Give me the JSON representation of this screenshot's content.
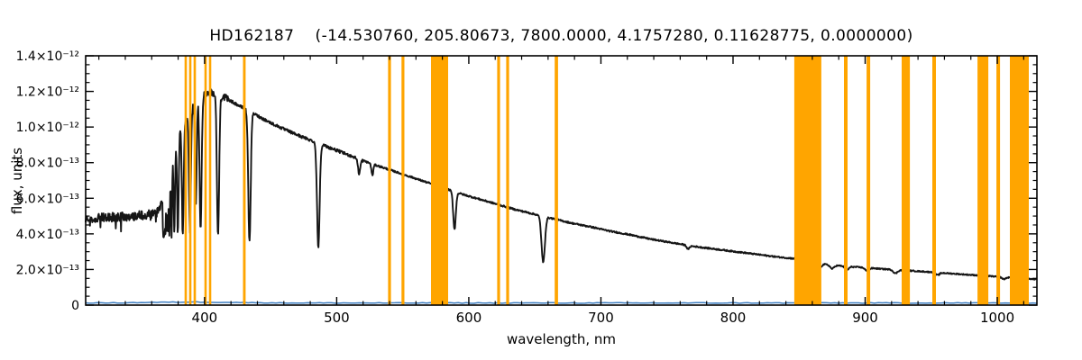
{
  "chart_data": {
    "type": "line",
    "title": "HD162187    (-14.530760, 205.80673, 7800.0000, 4.1757280, 0.11628775, 0.0000000)",
    "xlabel": "wavelength, nm",
    "ylabel": "flux, units",
    "xlim": [
      310,
      1030
    ],
    "ylim": [
      0,
      1.4e-12
    ],
    "flux_unit_scale": 1e-13,
    "grid": false,
    "legend": "none",
    "x_ticks": [
      {
        "value": 400,
        "label": "400"
      },
      {
        "value": 500,
        "label": "500"
      },
      {
        "value": 600,
        "label": "600"
      },
      {
        "value": 700,
        "label": "700"
      },
      {
        "value": 800,
        "label": "800"
      },
      {
        "value": 900,
        "label": "900"
      },
      {
        "value": 1000,
        "label": "1000"
      }
    ],
    "x_minor_step": 20,
    "y_ticks": [
      {
        "value": 14,
        "label": "1.4×10⁻¹²"
      },
      {
        "value": 12,
        "label": "1.2×10⁻¹²"
      },
      {
        "value": 10,
        "label": "1.0×10⁻¹²"
      },
      {
        "value": 8,
        "label": "8.0×10⁻¹³"
      },
      {
        "value": 6,
        "label": "6.0×10⁻¹³"
      },
      {
        "value": 4,
        "label": "4.0×10⁻¹³"
      },
      {
        "value": 2,
        "label": "2.0×10⁻¹³"
      },
      {
        "value": 0,
        "label": "0"
      }
    ],
    "y_minor_step": 0.5,
    "series": [
      {
        "name": "stellar spectrum",
        "color": "#151515",
        "continuum": {
          "x": [
            310,
            335,
            355,
            363,
            366,
            369,
            372,
            375,
            378,
            381,
            384,
            387,
            390,
            393,
            396,
            400,
            404,
            408,
            413,
            419,
            426,
            434,
            442,
            451,
            461,
            472,
            484,
            496,
            510,
            524,
            538,
            552,
            566,
            580,
            594,
            608,
            622,
            636,
            650,
            664,
            678,
            692,
            707,
            722,
            738,
            754,
            770,
            786,
            802,
            818,
            834,
            848,
            860,
            868,
            874,
            885,
            900,
            915,
            930,
            945,
            960,
            975,
            990,
            1005,
            1018,
            1030
          ],
          "y": [
            4.85,
            4.95,
            5.05,
            5.15,
            5.4,
            6.2,
            7.2,
            8.1,
            8.9,
            9.6,
            10.1,
            10.6,
            11.0,
            11.3,
            11.6,
            11.85,
            11.95,
            11.9,
            11.75,
            11.5,
            11.2,
            10.9,
            10.55,
            10.2,
            9.85,
            9.5,
            9.15,
            8.8,
            8.4,
            8.0,
            7.65,
            7.3,
            6.95,
            6.6,
            6.25,
            5.95,
            5.65,
            5.35,
            5.1,
            4.85,
            4.6,
            4.4,
            4.15,
            3.95,
            3.7,
            3.5,
            3.3,
            3.15,
            3.0,
            2.85,
            2.7,
            2.6,
            2.45,
            2.3,
            2.25,
            2.18,
            2.1,
            2.02,
            1.95,
            1.88,
            1.8,
            1.72,
            1.65,
            1.57,
            1.5,
            1.45
          ]
        },
        "absorption_lines": [
          [
            656.3,
            1.8,
            0.52
          ],
          [
            589.2,
            1.4,
            0.33
          ],
          [
            517.0,
            1.2,
            0.1
          ],
          [
            527.0,
            1.0,
            0.08
          ],
          [
            766.0,
            1.5,
            0.06
          ],
          [
            486.1,
            1.4,
            0.64
          ],
          [
            434.0,
            1.3,
            0.67
          ],
          [
            410.2,
            1.2,
            0.67
          ],
          [
            397.0,
            1.1,
            0.64
          ],
          [
            393.4,
            0.9,
            0.5
          ],
          [
            388.9,
            1.0,
            0.62
          ],
          [
            383.5,
            0.9,
            0.6
          ],
          [
            379.8,
            0.8,
            0.57
          ],
          [
            377.1,
            0.7,
            0.54
          ],
          [
            375.0,
            0.62,
            0.51
          ],
          [
            373.4,
            0.55,
            0.48
          ],
          [
            372.2,
            0.5,
            0.45
          ],
          [
            371.2,
            0.45,
            0.42
          ],
          [
            370.3,
            0.4,
            0.39
          ],
          [
            369.6,
            0.38,
            0.36
          ],
          [
            369.0,
            0.35,
            0.33
          ],
          [
            368.5,
            0.33,
            0.3
          ],
          [
            850.0,
            1.5,
            0.08
          ],
          [
            854.2,
            1.5,
            0.08
          ],
          [
            866.2,
            1.5,
            0.08
          ],
          [
            875.0,
            2.0,
            0.09
          ],
          [
            886.2,
            2.0,
            0.09
          ],
          [
            901.5,
            2.0,
            0.09
          ],
          [
            922.9,
            2.2,
            0.1
          ],
          [
            954.8,
            2.0,
            0.08
          ],
          [
            1004.9,
            2.0,
            0.07
          ]
        ]
      },
      {
        "name": "flux error",
        "color": "#3f7fc1",
        "base_level": 0.12,
        "bump_center": 390,
        "bump_height": 0.05
      }
    ],
    "masked_bands": {
      "color": "#ffa500",
      "bands": [
        [
          385.8,
          1.8
        ],
        [
          389.2,
          1.8
        ],
        [
          392.6,
          1.8
        ],
        [
          400.8,
          1.8
        ],
        [
          404.2,
          1.8
        ],
        [
          430.1,
          2.0
        ],
        [
          540.0,
          2.2
        ],
        [
          550.2,
          2.2
        ],
        [
          577.9,
          13.0
        ],
        [
          622.6,
          2.2
        ],
        [
          629.4,
          2.2
        ],
        [
          666.3,
          2.5
        ],
        [
          856.6,
          20.5
        ],
        [
          885.3,
          2.7
        ],
        [
          902.4,
          2.7
        ],
        [
          930.7,
          6.2
        ],
        [
          952.2,
          2.7
        ],
        [
          989.1,
          8.2
        ],
        [
          1000.7,
          2.7
        ],
        [
          1016.7,
          14.3
        ]
      ]
    }
  }
}
